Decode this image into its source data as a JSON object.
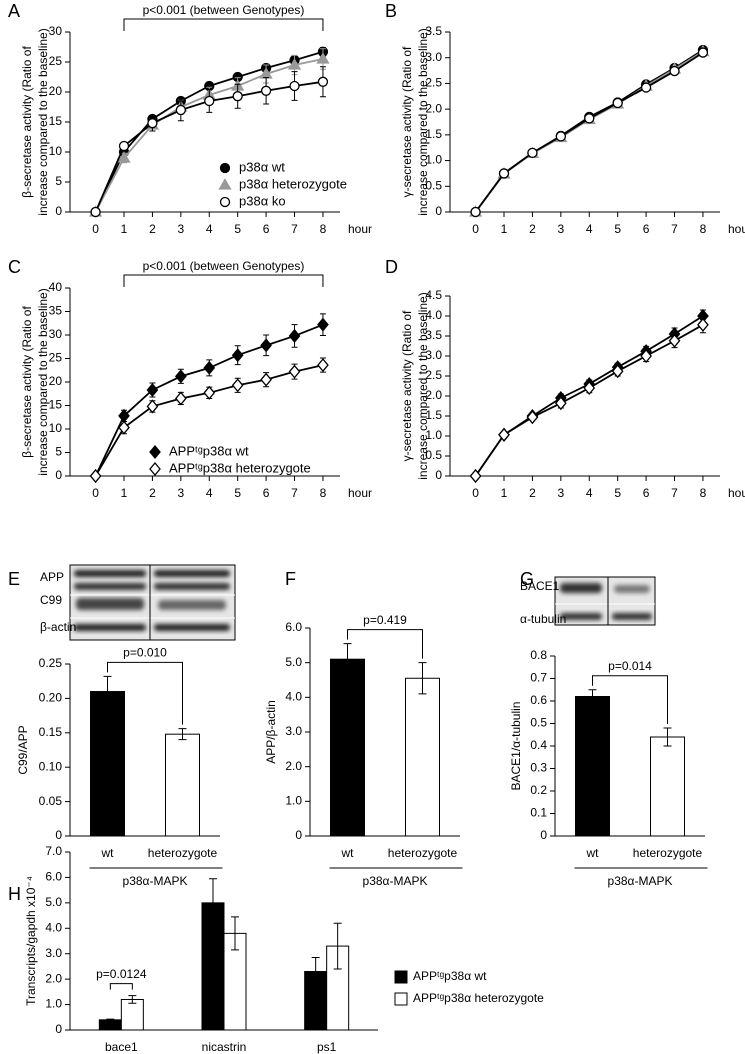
{
  "chart_data": [
    {
      "type": "line",
      "panel": "A",
      "annotation": "p<0.001 (between Genotypes)",
      "ylabel": [
        "β-secretase activity (Ratio of",
        "increase compared to the baseline)"
      ],
      "xlabel": "hour",
      "x": [
        0,
        1,
        2,
        3,
        4,
        5,
        6,
        7,
        8
      ],
      "xlim": [
        -0.9,
        8.6
      ],
      "xticks": [
        0,
        1,
        2,
        3,
        4,
        5,
        6,
        7,
        8
      ],
      "ylim": [
        0,
        30
      ],
      "yticks": [
        0,
        5,
        10,
        15,
        20,
        25,
        30
      ],
      "series": [
        {
          "name": "p38α wt",
          "color": "#000000",
          "fill": "#000000",
          "marker": "circle",
          "values": [
            0,
            10,
            15.5,
            18.5,
            21,
            22.5,
            24,
            25.3,
            26.7
          ],
          "errors": [
            0,
            0.5,
            0.5,
            0.5,
            0.6,
            0.6,
            0.6,
            0.7,
            0.7
          ]
        },
        {
          "name": "p38α heterozygote",
          "color": "#999999",
          "fill": "#999999",
          "marker": "triangle",
          "values": [
            0,
            9,
            14.5,
            17.5,
            19.5,
            21,
            23,
            24.5,
            25.5
          ],
          "errors": [
            0,
            0.8,
            1,
            1.2,
            1.3,
            1.4,
            1.5,
            1.6,
            1.7
          ]
        },
        {
          "name": "p38α ko",
          "color": "#000000",
          "fill": "#ffffff",
          "marker": "circle",
          "values": [
            0,
            11,
            14.8,
            17,
            18.5,
            19.3,
            20.2,
            21,
            21.7
          ],
          "errors": [
            0,
            0.6,
            1.3,
            1.8,
            1.9,
            2,
            2.2,
            2.4,
            2.5
          ]
        }
      ]
    },
    {
      "type": "line",
      "panel": "B",
      "ylabel": [
        "γ-secretase activity (Ratio of",
        "increase compared to the baseline)"
      ],
      "xlabel": "hour",
      "x": [
        0,
        1,
        2,
        3,
        4,
        5,
        6,
        7,
        8
      ],
      "xlim": [
        -0.9,
        8.6
      ],
      "xticks": [
        0,
        1,
        2,
        3,
        4,
        5,
        6,
        7,
        8
      ],
      "ylim": [
        0,
        3.5
      ],
      "yticks": [
        0,
        0.5,
        {
          "value": 1,
          "label": "1.0"
        },
        1.5,
        {
          "value": 2,
          "label": "2.0"
        },
        2.5,
        {
          "value": 3,
          "label": "3.0"
        },
        3.5
      ],
      "series": [
        {
          "color": "#000000",
          "fill": "#000000",
          "marker": "circle",
          "values": [
            0,
            0.75,
            1.15,
            1.48,
            1.85,
            2.13,
            2.48,
            2.8,
            3.15
          ]
        },
        {
          "color": "#999999",
          "fill": "#999999",
          "marker": "triangle",
          "values": [
            0,
            0.74,
            1.14,
            1.45,
            1.8,
            2.1,
            2.45,
            2.78,
            3.12
          ]
        },
        {
          "color": "#000000",
          "fill": "#ffffff",
          "marker": "circle",
          "values": [
            0,
            0.75,
            1.15,
            1.47,
            1.82,
            2.12,
            2.42,
            2.74,
            3.1
          ]
        }
      ]
    },
    {
      "type": "line",
      "panel": "C",
      "annotation": "p<0.001 (between Genotypes)",
      "ylabel": [
        "β-secretase activity (Ratio of",
        "increase compared to the baseline)"
      ],
      "xlabel": "hour",
      "x": [
        0,
        1,
        2,
        3,
        4,
        5,
        6,
        7,
        8
      ],
      "xlim": [
        -0.9,
        8.6
      ],
      "xticks": [
        0,
        1,
        2,
        3,
        4,
        5,
        6,
        7,
        8
      ],
      "ylim": [
        0,
        40
      ],
      "yticks": [
        0,
        5,
        10,
        15,
        20,
        25,
        30,
        35,
        40
      ],
      "series": [
        {
          "name": "APPᵗᵍp38α wt",
          "color": "#000000",
          "fill": "#000000",
          "marker": "diamond",
          "values": [
            0,
            12.8,
            18.3,
            21.2,
            23,
            25.7,
            27.8,
            29.8,
            32.2
          ],
          "errors": [
            0,
            1.2,
            1.5,
            1.5,
            1.7,
            2,
            2.2,
            2.4,
            2.3
          ]
        },
        {
          "name": "APPᵗᵍp38α heterozygote",
          "color": "#000000",
          "fill": "#ffffff",
          "marker": "diamond",
          "values": [
            0,
            10.3,
            14.8,
            16.5,
            17.7,
            19.3,
            20.5,
            22.2,
            23.6
          ],
          "errors": [
            0,
            1.3,
            1.2,
            1.3,
            1.2,
            1.5,
            1.5,
            1.6,
            1.5
          ]
        }
      ]
    },
    {
      "type": "line",
      "panel": "D",
      "ylabel": [
        "γ-secretase activity (Ratio of",
        "increase compared to the baseline)"
      ],
      "xlabel": "hour",
      "x": [
        0,
        1,
        2,
        3,
        4,
        5,
        6,
        7,
        8
      ],
      "xlim": [
        -0.9,
        8.6
      ],
      "xticks": [
        0,
        1,
        2,
        3,
        4,
        5,
        6,
        7,
        8
      ],
      "ylim": [
        0,
        4.5
      ],
      "yticks": [
        0,
        0.5,
        {
          "value": 1,
          "label": "1.0"
        },
        1.5,
        {
          "value": 2,
          "label": "2.0"
        },
        2.5,
        {
          "value": 3,
          "label": "3.0"
        },
        3.5,
        {
          "value": 4,
          "label": "4.0"
        },
        4.5
      ],
      "series": [
        {
          "color": "#000000",
          "fill": "#000000",
          "marker": "diamond",
          "values": [
            0,
            1.03,
            1.5,
            1.95,
            2.3,
            2.72,
            3.12,
            3.55,
            4.0
          ],
          "errors": [
            0,
            0.06,
            0.07,
            0.1,
            0.1,
            0.1,
            0.12,
            0.15,
            0.15
          ]
        },
        {
          "color": "#000000",
          "fill": "#ffffff",
          "marker": "diamond",
          "values": [
            0,
            1.03,
            1.47,
            1.82,
            2.2,
            2.62,
            3.0,
            3.38,
            3.78
          ],
          "errors": [
            0,
            0.06,
            0.07,
            0.12,
            0.12,
            0.12,
            0.14,
            0.17,
            0.2
          ]
        }
      ]
    },
    {
      "type": "bar",
      "panel": "E",
      "blot_labels": [
        "APP",
        "C99",
        "β-actin"
      ],
      "annotation": "p=0.010",
      "ylabel": "C99/APP",
      "group_label": "p38α-MAPK",
      "categories": [
        "wt",
        "heterozygote"
      ],
      "values": [
        0.21,
        0.148
      ],
      "errors": [
        0.022,
        0.008
      ],
      "colors": [
        "#000000",
        "#ffffff"
      ],
      "ylim": [
        0,
        0.25
      ],
      "yticks": [
        0,
        0.05,
        {
          "value": 0.1,
          "label": "0.10"
        },
        0.15,
        {
          "value": 0.2,
          "label": "0.20"
        },
        0.25
      ]
    },
    {
      "type": "bar",
      "panel": "F",
      "annotation": "p=0.419",
      "ylabel": "APP/β-actin",
      "group_label": "p38α-MAPK",
      "categories": [
        "wt",
        "heterozygote"
      ],
      "values": [
        5.1,
        4.55
      ],
      "errors": [
        0.45,
        0.45
      ],
      "colors": [
        "#000000",
        "#ffffff"
      ],
      "ylim": [
        0,
        6
      ],
      "yticks": [
        0,
        {
          "value": 1,
          "label": "1.0"
        },
        {
          "value": 2,
          "label": "2.0"
        },
        {
          "value": 3,
          "label": "3.0"
        },
        {
          "value": 4,
          "label": "4.0"
        },
        {
          "value": 5,
          "label": "5.0"
        },
        {
          "value": 6,
          "label": "6.0"
        }
      ]
    },
    {
      "type": "bar",
      "panel": "G",
      "blot_labels": [
        "BACE1",
        "α-tubulin"
      ],
      "annotation": "p=0.014",
      "ylabel": "BACE1/α-tubulin",
      "group_label": "p38α-MAPK",
      "categories": [
        "wt",
        "heterozygote"
      ],
      "values": [
        0.62,
        0.44
      ],
      "errors": [
        0.03,
        0.04
      ],
      "colors": [
        "#000000",
        "#ffffff"
      ],
      "ylim": [
        0,
        0.8
      ],
      "yticks": [
        0,
        0.1,
        0.2,
        0.3,
        0.4,
        0.5,
        0.6,
        0.7,
        0.8
      ]
    },
    {
      "type": "bar",
      "panel": "H",
      "annotation": "p=0.0124",
      "ylabel": "Transcripts/gapdh x10⁻⁴",
      "categories": [
        "bace1",
        "nicastrin",
        "ps1"
      ],
      "series": [
        {
          "name": "APPᵗᵍp38α wt",
          "color": "#000000",
          "values": [
            0.4,
            5.0,
            2.3
          ],
          "errors": [
            0.03,
            0.95,
            0.55
          ]
        },
        {
          "name": "APPᵗᵍp38α heterozygote",
          "color": "#ffffff",
          "values": [
            1.2,
            3.8,
            3.3
          ],
          "errors": [
            0.15,
            0.65,
            0.9
          ]
        }
      ],
      "ylim": [
        0,
        7
      ],
      "yticks": [
        0,
        {
          "value": 1,
          "label": "1.0"
        },
        {
          "value": 2,
          "label": "2.0"
        },
        {
          "value": 3,
          "label": "3.0"
        },
        {
          "value": 4,
          "label": "4.0"
        },
        {
          "value": 5,
          "label": "5.0"
        },
        {
          "value": 6,
          "label": "6.0"
        },
        {
          "value": 7,
          "label": "7.0"
        }
      ]
    }
  ]
}
